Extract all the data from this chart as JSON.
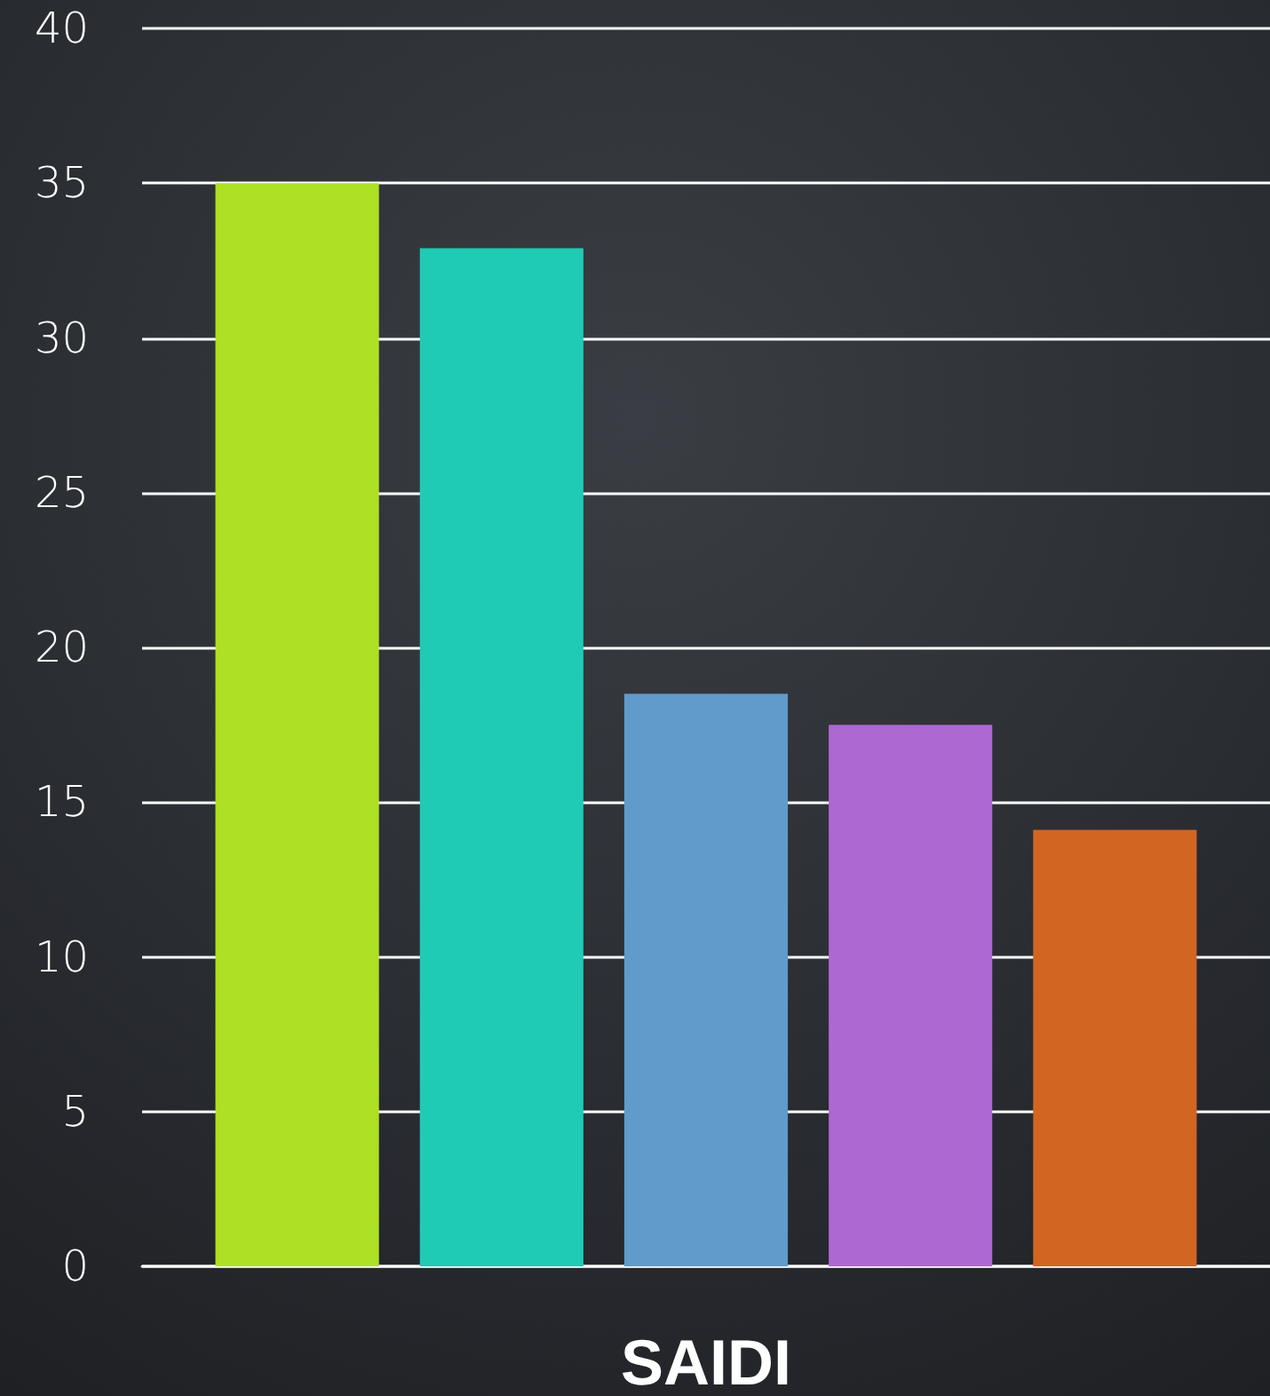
{
  "chart_data": {
    "type": "bar",
    "categories": [
      "SAIDI"
    ],
    "series": [
      {
        "color": "#aee024",
        "values": [
          35
        ]
      },
      {
        "color": "#1fcbb4",
        "values": [
          32.9
        ]
      },
      {
        "color": "#609bcb",
        "values": [
          18.5
        ]
      },
      {
        "color": "#ad68d2",
        "values": [
          17.5
        ]
      },
      {
        "color": "#d36522",
        "values": [
          14.1
        ]
      }
    ],
    "ylim": [
      0,
      40
    ],
    "yticks": [
      0,
      5,
      10,
      15,
      20,
      25,
      30,
      35,
      40
    ],
    "grid": "y"
  }
}
